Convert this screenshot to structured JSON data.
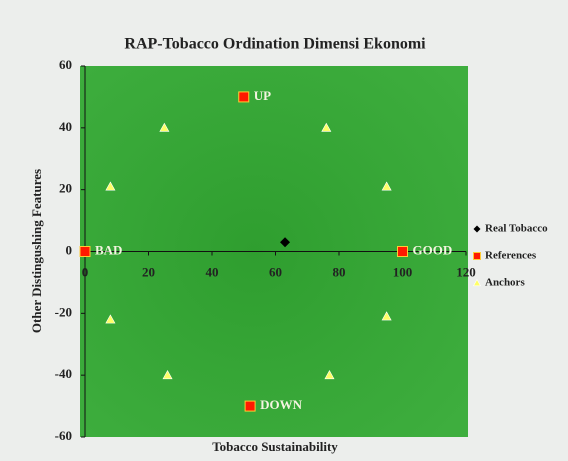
{
  "chart_data": {
    "type": "scatter",
    "title": "RAP-Tobacco Ordination Dimensi Ekonomi",
    "x_label": "Tobacco Sustainability",
    "y_label": "Other Distingushing Features",
    "xlim": [
      0,
      120
    ],
    "ylim": [
      -60,
      60
    ],
    "xticks": [
      0,
      20,
      40,
      60,
      80,
      100,
      120
    ],
    "yticks": [
      -60,
      -40,
      -20,
      0,
      20,
      40,
      60
    ],
    "legend": "right",
    "series": [
      {
        "name": "Real Tobacco",
        "color": "#000000",
        "marker": "diamond",
        "x": [
          63
        ],
        "values": [
          3
        ]
      },
      {
        "name": "References",
        "color": "#ff1a00",
        "marker": "square",
        "x": [
          0,
          100,
          50,
          52
        ],
        "values": [
          0,
          0,
          50,
          -50
        ],
        "labels": [
          "BAD",
          "GOOD",
          "UP",
          "DOWN"
        ]
      },
      {
        "name": "Anchors",
        "color": "#ffff66",
        "marker": "triangle",
        "x": [
          25,
          76,
          8,
          95,
          8,
          95,
          26,
          77,
          50,
          52
        ],
        "values": [
          40,
          40,
          21,
          21,
          -22,
          -21,
          -40,
          -40,
          50,
          -50
        ]
      }
    ]
  }
}
